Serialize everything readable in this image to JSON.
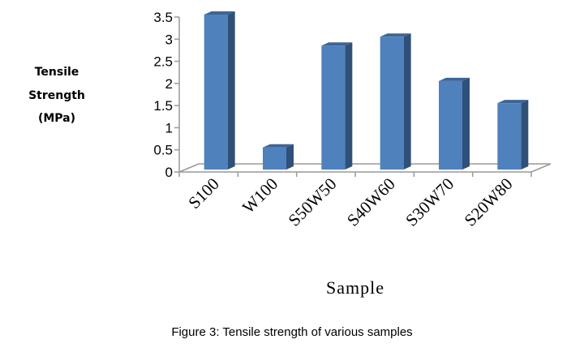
{
  "chart_data": {
    "type": "bar",
    "title": "",
    "categories": [
      "S100",
      "W100",
      "S50W50",
      "S40W60",
      "S30W70",
      "S20W80"
    ],
    "values": [
      3.5,
      0.5,
      2.8,
      3.0,
      2.0,
      1.5
    ],
    "xlabel": "Sample",
    "ylabel_lines": [
      "Tensile",
      "Strength",
      "(MPa)"
    ],
    "ylim": [
      0,
      3.5
    ],
    "yticks": [
      "0",
      "0.5",
      "1",
      "1.5",
      "2",
      "2.5",
      "3",
      "3.5"
    ],
    "grid": false,
    "legend": "none",
    "bar_color": "#4f81bd",
    "bar_side_color": "#2f5078",
    "bar_top_color": "#3d6496"
  },
  "caption": "Figure 3: Tensile strength of various samples"
}
